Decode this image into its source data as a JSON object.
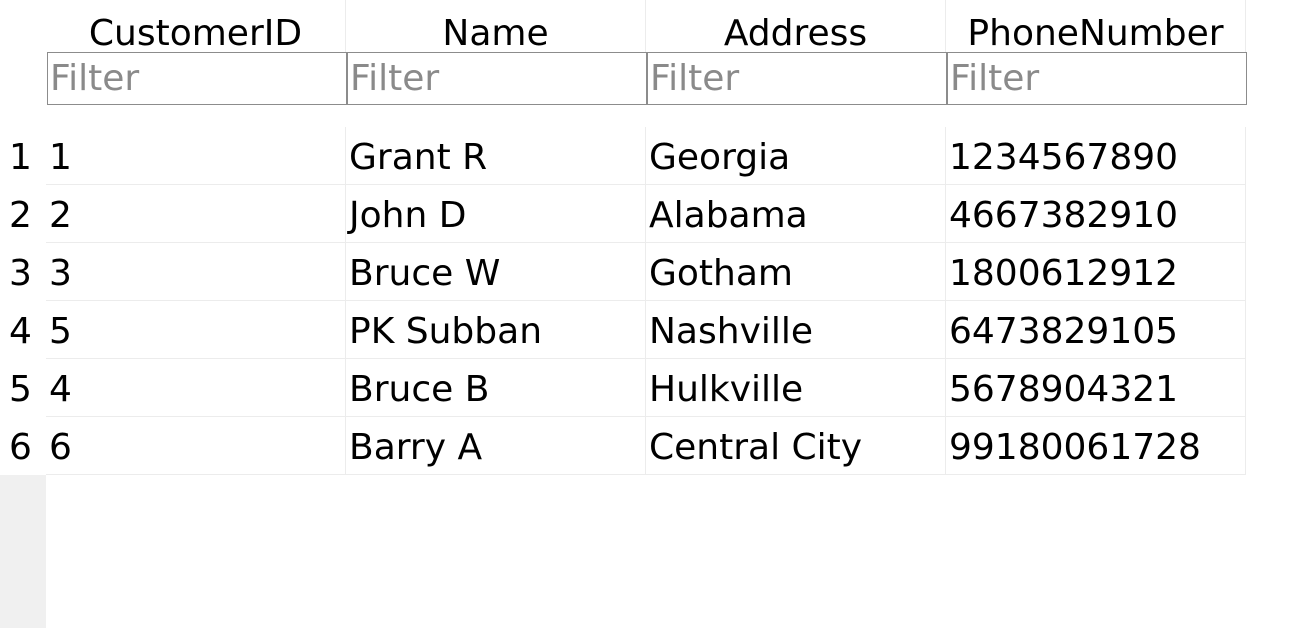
{
  "table": {
    "columns": [
      {
        "header": "CustomerID",
        "filter_placeholder": "Filter"
      },
      {
        "header": "Name",
        "filter_placeholder": "Filter"
      },
      {
        "header": "Address",
        "filter_placeholder": "Filter"
      },
      {
        "header": "PhoneNumber",
        "filter_placeholder": "Filter"
      }
    ],
    "rows": [
      {
        "num": "1",
        "cells": [
          "1",
          "Grant R",
          "Georgia",
          "1234567890"
        ]
      },
      {
        "num": "2",
        "cells": [
          "2",
          "John D",
          "Alabama",
          "4667382910"
        ]
      },
      {
        "num": "3",
        "cells": [
          "3",
          "Bruce W",
          "Gotham",
          "1800612912"
        ]
      },
      {
        "num": "4",
        "cells": [
          "5",
          "PK Subban",
          "Nashville",
          "6473829105"
        ]
      },
      {
        "num": "5",
        "cells": [
          "4",
          "Bruce B",
          "Hulkville",
          "5678904321"
        ]
      },
      {
        "num": "6",
        "cells": [
          "6",
          "Barry A",
          "Central City",
          "99180061728"
        ]
      }
    ]
  }
}
